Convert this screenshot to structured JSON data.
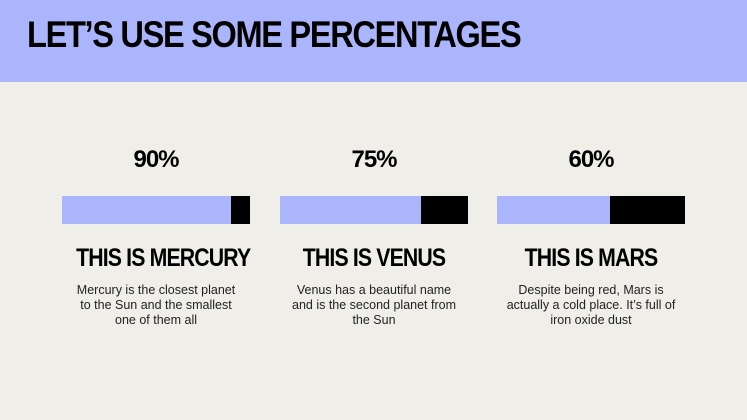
{
  "header": {
    "title": "LET’S USE SOME PERCENTAGES"
  },
  "items": [
    {
      "value": 90,
      "label": "90%",
      "title": "THIS IS MERCURY",
      "text": "Mercury is the closest planet to the Sun and the smallest one of them all"
    },
    {
      "value": 75,
      "label": "75%",
      "title": "THIS IS VENUS",
      "text": "Venus has a beautiful name and is the second planet from the Sun"
    },
    {
      "value": 60,
      "label": "60%",
      "title": "THIS IS MARS",
      "text": "Despite being red, Mars is actually a cold place. It’s full of iron oxide dust"
    }
  ]
}
